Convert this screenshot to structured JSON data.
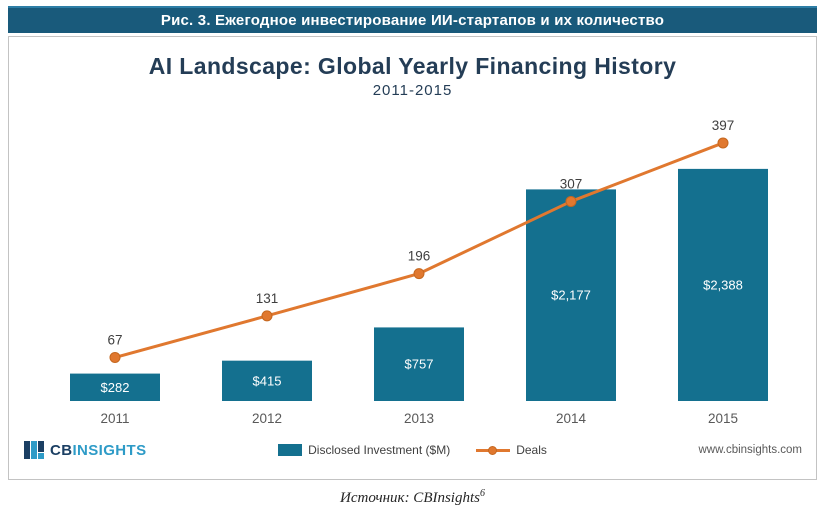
{
  "header": {
    "title": "Рис. 3. Ежегодное инвестирование ИИ-стартапов и их количество"
  },
  "chart": {
    "title": "AI Landscape: Global Yearly Financing History",
    "subtitle": "2011-2015",
    "website": "www.cbinsights.com",
    "logo": {
      "cb": "CB",
      "insights": "INSIGHTS"
    }
  },
  "chart_data": {
    "type": "bar+line",
    "title": "AI Landscape: Global Yearly Financing History",
    "subtitle": "2011-2015",
    "categories": [
      "2011",
      "2012",
      "2013",
      "2014",
      "2015"
    ],
    "series": [
      {
        "name": "Disclosed Investment ($M)",
        "type": "bar",
        "values": [
          282,
          415,
          757,
          2177,
          2388
        ],
        "value_labels": [
          "$282",
          "$415",
          "$757",
          "$2,177",
          "$2,388"
        ],
        "color": "#14708f"
      },
      {
        "name": "Deals",
        "type": "line",
        "values": [
          67,
          131,
          196,
          307,
          397
        ],
        "value_labels": [
          "67",
          "131",
          "196",
          "307",
          "397"
        ],
        "color": "#e0782f"
      }
    ],
    "grid": false,
    "legend_position": "bottom",
    "colors": {
      "bar": "#14708f",
      "line": "#e0782f",
      "axis_text": "#595959",
      "data_label_dark": "#3f3f3f",
      "data_label_light": "#ffffff"
    }
  },
  "caption": {
    "text": "Источник: CBInsights",
    "superscript": "6"
  }
}
